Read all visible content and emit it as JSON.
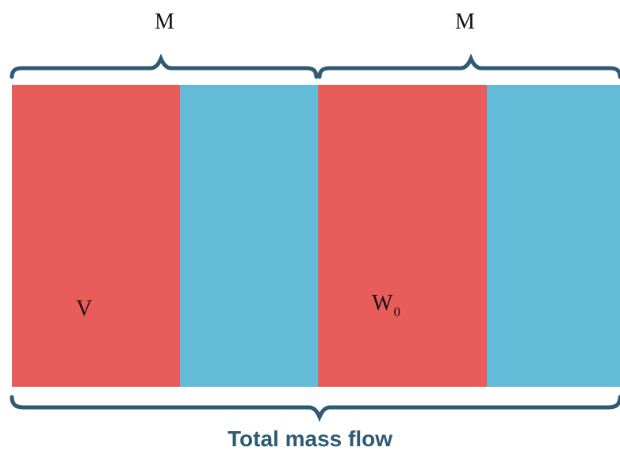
{
  "labels": {
    "top_left": "M",
    "top_right": "M",
    "segment_v": "V",
    "segment_w_main": "W",
    "segment_w_sub": "0",
    "bottom": "Total mass flow"
  },
  "colors": {
    "red": "#e85c5a",
    "blue": "#62bcd7",
    "brace": "#2e5a73",
    "caption": "#2e5a73"
  }
}
